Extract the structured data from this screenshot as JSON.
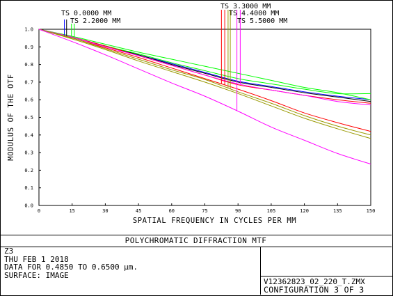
{
  "chart_data": {
    "type": "line",
    "title": "POLYCHROMATIC DIFFRACTION MTF",
    "xlabel": "SPATIAL FREQUENCY IN CYCLES PER MM",
    "ylabel": "MODULUS OF THE OTF",
    "xlim": [
      0,
      150
    ],
    "ylim": [
      0,
      1
    ],
    "x_ticks": [
      "0",
      "15",
      "30",
      "45",
      "60",
      "75",
      "90",
      "105",
      "120",
      "135",
      "150"
    ],
    "y_ticks": [
      "0.0",
      "0.1",
      "0.2",
      "0.3",
      "0.4",
      "0.5",
      "0.6",
      "0.7",
      "0.8",
      "0.9",
      "1.0"
    ],
    "grid": false,
    "x": [
      0,
      15,
      30,
      45,
      60,
      75,
      90,
      105,
      120,
      135,
      150
    ],
    "series": [
      {
        "color": "#0000ff",
        "values": [
          1.0,
          0.955,
          0.905,
          0.855,
          0.805,
          0.755,
          0.705,
          0.675,
          0.645,
          0.62,
          0.6
        ]
      },
      {
        "color": "#000000",
        "values": [
          1.0,
          0.955,
          0.905,
          0.855,
          0.8,
          0.75,
          0.7,
          0.67,
          0.64,
          0.615,
          0.59
        ]
      },
      {
        "color": "#00ff00",
        "values": [
          1.0,
          0.96,
          0.915,
          0.87,
          0.83,
          0.79,
          0.75,
          0.71,
          0.67,
          0.64,
          0.6
        ]
      },
      {
        "color": "#00ff00",
        "values": [
          1.0,
          0.955,
          0.905,
          0.86,
          0.81,
          0.765,
          0.72,
          0.69,
          0.66,
          0.635,
          0.635
        ]
      },
      {
        "color": "#ff0000",
        "values": [
          1.0,
          0.95,
          0.895,
          0.84,
          0.78,
          0.72,
          0.66,
          0.595,
          0.525,
          0.47,
          0.42
        ]
      },
      {
        "color": "#ff0000",
        "values": [
          1.0,
          0.955,
          0.905,
          0.85,
          0.795,
          0.74,
          0.685,
          0.655,
          0.625,
          0.6,
          0.58
        ]
      },
      {
        "color": "#ff00ff",
        "values": [
          1.0,
          0.955,
          0.9,
          0.85,
          0.795,
          0.74,
          0.69,
          0.655,
          0.625,
          0.59,
          0.57
        ]
      },
      {
        "color": "#999900",
        "values": [
          1.0,
          0.95,
          0.89,
          0.83,
          0.77,
          0.715,
          0.645,
          0.58,
          0.51,
          0.45,
          0.4
        ]
      },
      {
        "color": "#999900",
        "values": [
          1.0,
          0.945,
          0.885,
          0.82,
          0.76,
          0.7,
          0.635,
          0.565,
          0.495,
          0.435,
          0.38
        ]
      },
      {
        "color": "#ff00ff",
        "values": [
          1.0,
          0.93,
          0.855,
          0.775,
          0.695,
          0.62,
          0.535,
          0.445,
          0.37,
          0.295,
          0.235
        ]
      }
    ],
    "field_labels": [
      {
        "text": "TS 0.0000 MM",
        "x": 11.5,
        "markers": [
          {
            "x": 11.5,
            "color": "#0000ff"
          },
          {
            "x": 12.5,
            "color": "#000000"
          }
        ]
      },
      {
        "text": "TS 2.2000 MM",
        "x": 15.3,
        "markers": [
          {
            "x": 14.7,
            "color": "#00ff00"
          },
          {
            "x": 16.0,
            "color": "#00ff00"
          }
        ]
      },
      {
        "text": "TS 3.3000 MM",
        "x": 82.5,
        "markers": [
          {
            "x": 82.5,
            "color": "#ff0000"
          },
          {
            "x": 84.0,
            "color": "#ff0000"
          }
        ]
      },
      {
        "text": "TS 4.4000 MM",
        "x": 85.5,
        "markers": [
          {
            "x": 85.5,
            "color": "#999900"
          },
          {
            "x": 86.5,
            "color": "#999900"
          }
        ]
      },
      {
        "text": "TS 5.5000 MM",
        "x": 89.5,
        "markers": [
          {
            "x": 89.5,
            "color": "#ff00ff"
          },
          {
            "x": 91.0,
            "color": "#ff00ff"
          }
        ]
      }
    ]
  },
  "info": {
    "lines": [
      "Z3",
      "THU FEB 1 2018",
      "DATA FOR 0.4850 TO 0.6500 µm.",
      "SURFACE: IMAGE"
    ],
    "file_name": "V12362823_02_220_T.ZMX",
    "configuration": "CONFIGURATION 3 OF 3"
  }
}
